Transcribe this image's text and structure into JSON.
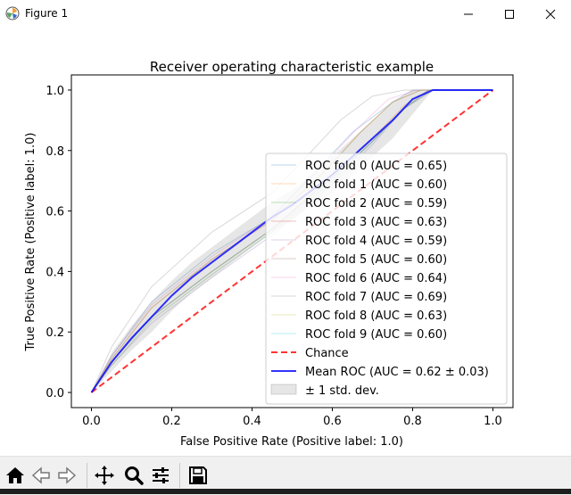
{
  "window": {
    "title": "Figure 1"
  },
  "chart_data": {
    "type": "line",
    "title": "Receiver operating characteristic example",
    "xlabel": "False Positive Rate (Positive label: 1.0)",
    "ylabel": "True Positive Rate (Positive label: 1.0)",
    "xlim": [
      -0.05,
      1.05
    ],
    "ylim": [
      -0.05,
      1.05
    ],
    "xticks": [
      "0.0",
      "0.2",
      "0.4",
      "0.6",
      "0.8",
      "1.0"
    ],
    "yticks": [
      "0.0",
      "0.2",
      "0.4",
      "0.6",
      "0.8",
      "1.0"
    ],
    "grid": false,
    "legend_position": "lower right",
    "series": [
      {
        "name": "ROC fold 0 (AUC = 0.65)",
        "color": "#1f77b4",
        "x": [
          0,
          0.05,
          0.15,
          0.3,
          0.45,
          0.55,
          0.65,
          0.75,
          0.8,
          0.83,
          1.0
        ],
        "y": [
          0,
          0.12,
          0.3,
          0.46,
          0.58,
          0.72,
          0.86,
          0.96,
          1.0,
          1.0,
          1.0
        ]
      },
      {
        "name": "ROC fold 1 (AUC = 0.60)",
        "color": "#ff7f0e",
        "x": [
          0,
          0.05,
          0.15,
          0.3,
          0.45,
          0.6,
          0.7,
          0.78,
          0.84,
          1.0
        ],
        "y": [
          0,
          0.1,
          0.25,
          0.4,
          0.54,
          0.72,
          0.84,
          0.95,
          1.0,
          1.0
        ]
      },
      {
        "name": "ROC fold 2 (AUC = 0.59)",
        "color": "#2ca02c",
        "x": [
          0,
          0.05,
          0.15,
          0.3,
          0.45,
          0.6,
          0.7,
          0.78,
          0.85,
          1.0
        ],
        "y": [
          0,
          0.09,
          0.24,
          0.39,
          0.53,
          0.7,
          0.83,
          0.94,
          1.0,
          1.0
        ]
      },
      {
        "name": "ROC fold 3 (AUC = 0.63)",
        "color": "#d62728",
        "x": [
          0,
          0.05,
          0.15,
          0.3,
          0.45,
          0.58,
          0.67,
          0.75,
          0.82,
          1.0
        ],
        "y": [
          0,
          0.11,
          0.28,
          0.44,
          0.57,
          0.73,
          0.86,
          0.96,
          1.0,
          1.0
        ]
      },
      {
        "name": "ROC fold 4 (AUC = 0.59)",
        "color": "#9467bd",
        "x": [
          0,
          0.05,
          0.15,
          0.3,
          0.45,
          0.6,
          0.7,
          0.78,
          0.85,
          1.0
        ],
        "y": [
          0,
          0.09,
          0.23,
          0.38,
          0.52,
          0.69,
          0.82,
          0.94,
          1.0,
          1.0
        ]
      },
      {
        "name": "ROC fold 5 (AUC = 0.60)",
        "color": "#8c564b",
        "x": [
          0,
          0.05,
          0.15,
          0.3,
          0.45,
          0.6,
          0.7,
          0.78,
          0.84,
          1.0
        ],
        "y": [
          0,
          0.1,
          0.25,
          0.4,
          0.54,
          0.71,
          0.83,
          0.94,
          1.0,
          1.0
        ]
      },
      {
        "name": "ROC fold 6 (AUC = 0.64)",
        "color": "#e377c2",
        "x": [
          0,
          0.05,
          0.15,
          0.3,
          0.45,
          0.57,
          0.66,
          0.74,
          0.81,
          1.0
        ],
        "y": [
          0,
          0.12,
          0.29,
          0.45,
          0.58,
          0.74,
          0.87,
          0.97,
          1.0,
          1.0
        ]
      },
      {
        "name": "ROC fold 7 (AUC = 0.69)",
        "color": "#7f7f7f",
        "x": [
          0,
          0.05,
          0.15,
          0.3,
          0.45,
          0.55,
          0.62,
          0.7,
          0.78,
          1.0
        ],
        "y": [
          0,
          0.15,
          0.35,
          0.53,
          0.66,
          0.8,
          0.9,
          0.98,
          1.0,
          1.0
        ]
      },
      {
        "name": "ROC fold 8 (AUC = 0.63)",
        "color": "#bcbd22",
        "x": [
          0,
          0.05,
          0.15,
          0.3,
          0.45,
          0.58,
          0.67,
          0.75,
          0.82,
          1.0
        ],
        "y": [
          0,
          0.11,
          0.28,
          0.44,
          0.57,
          0.73,
          0.86,
          0.96,
          1.0,
          1.0
        ]
      },
      {
        "name": "ROC fold 9 (AUC = 0.60)",
        "color": "#17becf",
        "x": [
          0,
          0.05,
          0.15,
          0.3,
          0.45,
          0.6,
          0.7,
          0.78,
          0.84,
          1.0
        ],
        "y": [
          0,
          0.1,
          0.25,
          0.4,
          0.54,
          0.71,
          0.83,
          0.94,
          1.0,
          1.0
        ]
      }
    ],
    "chance": {
      "name": "Chance",
      "color": "#ff0000",
      "x": [
        0,
        1
      ],
      "y": [
        0,
        1
      ]
    },
    "mean": {
      "name": "Mean ROC (AUC = 0.62 ± 0.03)",
      "color": "#0000ff",
      "x": [
        0,
        0.05,
        0.1,
        0.15,
        0.2,
        0.25,
        0.3,
        0.35,
        0.4,
        0.45,
        0.5,
        0.55,
        0.6,
        0.65,
        0.7,
        0.75,
        0.8,
        0.85,
        0.9,
        0.95,
        1.0
      ],
      "y": [
        0,
        0.1,
        0.18,
        0.25,
        0.32,
        0.38,
        0.43,
        0.48,
        0.53,
        0.58,
        0.62,
        0.67,
        0.72,
        0.78,
        0.84,
        0.9,
        0.97,
        1.0,
        1.0,
        1.0,
        1.0
      ]
    },
    "std_band": {
      "name": "± 1 std. dev.",
      "color": "#808080",
      "upper": [
        0,
        0.13,
        0.22,
        0.3,
        0.37,
        0.43,
        0.48,
        0.53,
        0.58,
        0.63,
        0.67,
        0.72,
        0.78,
        0.84,
        0.9,
        0.96,
        1.0,
        1.0,
        1.0,
        1.0,
        1.0
      ],
      "lower": [
        0,
        0.07,
        0.14,
        0.2,
        0.27,
        0.33,
        0.38,
        0.43,
        0.48,
        0.53,
        0.57,
        0.62,
        0.66,
        0.72,
        0.78,
        0.84,
        0.92,
        1.0,
        1.0,
        1.0,
        1.0
      ]
    }
  },
  "toolbar": {
    "buttons": [
      {
        "name": "home-icon",
        "label": "Home"
      },
      {
        "name": "back-icon",
        "label": "Back"
      },
      {
        "name": "forward-icon",
        "label": "Forward"
      },
      {
        "name": "pan-icon",
        "label": "Pan"
      },
      {
        "name": "zoom-icon",
        "label": "Zoom"
      },
      {
        "name": "configure-subplots-icon",
        "label": "Subplots"
      },
      {
        "name": "save-icon",
        "label": "Save"
      }
    ]
  }
}
